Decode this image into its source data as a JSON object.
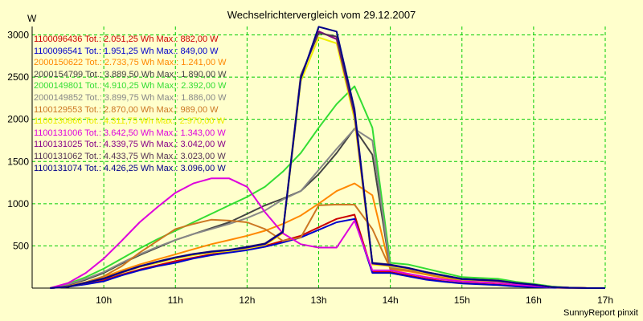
{
  "chart_data": {
    "type": "line",
    "title": "Wechselrichtervergleich vom 29.12.2007",
    "ylabel": "W",
    "footer": "SunnyReport pinxit",
    "xlim": [
      9.0,
      17.0
    ],
    "ylim": [
      0,
      3100
    ],
    "x_ticks": [
      10,
      11,
      12,
      13,
      14,
      15,
      16,
      17
    ],
    "x_tick_labels": [
      "10h",
      "11h",
      "12h",
      "13h",
      "14h",
      "15h",
      "16h",
      "17h"
    ],
    "y_ticks": [
      500,
      1000,
      1500,
      2000,
      2500,
      3000
    ],
    "y_tick_labels": [
      "500",
      "1000",
      "1500",
      "2000",
      "2500",
      "3000"
    ],
    "grid": true,
    "legend_position": "top-left",
    "series": [
      {
        "name": "1100096436 Tot.: 2.051,25 Wh Max.: 882,00 W",
        "color": "#cc0000",
        "x": [
          9.25,
          9.5,
          9.75,
          10,
          10.25,
          10.5,
          10.75,
          11,
          11.25,
          11.5,
          11.75,
          12,
          12.25,
          12.5,
          12.75,
          13,
          13.25,
          13.5,
          13.75,
          14,
          14.25,
          14.5,
          14.75,
          15,
          15.25,
          15.5,
          15.75,
          16,
          16.25,
          16.5,
          16.75,
          17
        ],
        "y": [
          0,
          20,
          50,
          100,
          160,
          220,
          270,
          320,
          360,
          400,
          430,
          460,
          500,
          560,
          620,
          720,
          820,
          870,
          190,
          190,
          150,
          110,
          80,
          60,
          50,
          40,
          25,
          15,
          5,
          3,
          0,
          0
        ]
      },
      {
        "name": "1100096541 Tot.: 1.951,25 Wh Max.: 849,00 W",
        "color": "#0000cc",
        "x": [
          9.25,
          9.5,
          9.75,
          10,
          10.25,
          10.5,
          10.75,
          11,
          11.25,
          11.5,
          11.75,
          12,
          12.25,
          12.5,
          12.75,
          13,
          13.25,
          13.5,
          13.75,
          14,
          14.25,
          14.5,
          14.75,
          15,
          15.25,
          15.5,
          15.75,
          16,
          16.25,
          16.5,
          16.75,
          17
        ],
        "y": [
          0,
          15,
          45,
          80,
          150,
          210,
          260,
          300,
          350,
          390,
          420,
          450,
          490,
          540,
          600,
          690,
          780,
          820,
          180,
          180,
          140,
          100,
          75,
          55,
          45,
          35,
          20,
          12,
          5,
          3,
          0,
          0
        ]
      },
      {
        "name": "2000150622 Tot.: 2.733,75 Wh Max.: 1.241,00 W",
        "color": "#ff8800",
        "x": [
          9.25,
          9.5,
          9.75,
          10,
          10.25,
          10.5,
          10.75,
          11,
          11.25,
          11.5,
          11.75,
          12,
          12.25,
          12.5,
          12.75,
          13,
          13.25,
          13.5,
          13.75,
          14,
          14.25,
          14.5,
          14.75,
          15,
          15.25,
          15.5,
          15.75,
          16,
          16.25,
          16.5,
          16.75,
          17
        ],
        "y": [
          0,
          25,
          70,
          130,
          210,
          280,
          340,
          400,
          460,
          520,
          570,
          620,
          680,
          760,
          860,
          1000,
          1150,
          1240,
          1100,
          220,
          200,
          160,
          120,
          90,
          80,
          70,
          50,
          30,
          10,
          5,
          0,
          0
        ]
      },
      {
        "name": "2000154799 Tot.: 3.889,50 Wh Max.: 1.890,00 W",
        "color": "#444444",
        "x": [
          9.25,
          9.5,
          9.75,
          10,
          10.25,
          10.5,
          10.75,
          11,
          11.25,
          11.5,
          11.75,
          12,
          12.25,
          12.5,
          12.75,
          13,
          13.25,
          13.5,
          13.75,
          14,
          14.25,
          14.5,
          14.75,
          15,
          15.25,
          15.5,
          15.75,
          16,
          16.25,
          16.5,
          16.75,
          17
        ],
        "y": [
          0,
          40,
          100,
          180,
          290,
          390,
          480,
          570,
          640,
          710,
          780,
          880,
          980,
          1060,
          1150,
          1350,
          1600,
          1890,
          1580,
          230,
          230,
          190,
          140,
          110,
          100,
          90,
          60,
          40,
          15,
          5,
          0,
          0
        ]
      },
      {
        "name": "2000149801 Tot.: 4.910,25 Wh Max.: 2.392,00 W",
        "color": "#33dd33",
        "x": [
          9.25,
          9.5,
          9.75,
          10,
          10.25,
          10.5,
          10.75,
          11,
          11.25,
          11.5,
          11.75,
          12,
          12.25,
          12.5,
          12.75,
          13,
          13.25,
          13.5,
          13.75,
          14,
          14.25,
          14.5,
          14.75,
          15,
          15.25,
          15.5,
          15.75,
          16,
          16.25,
          16.5,
          16.75,
          17
        ],
        "y": [
          0,
          50,
          130,
          230,
          350,
          470,
          580,
          680,
          780,
          880,
          980,
          1080,
          1200,
          1380,
          1600,
          1900,
          2180,
          2392,
          1900,
          300,
          280,
          230,
          180,
          130,
          120,
          110,
          75,
          50,
          20,
          5,
          0,
          0
        ]
      },
      {
        "name": "2000149852 Tot.: 3.899,75 Wh Max.: 1.886,00 W",
        "color": "#888888",
        "x": [
          9.25,
          9.5,
          9.75,
          10,
          10.25,
          10.5,
          10.75,
          11,
          11.25,
          11.5,
          11.75,
          12,
          12.25,
          12.5,
          12.75,
          13,
          13.25,
          13.5,
          13.75,
          14,
          14.25,
          14.5,
          14.75,
          15,
          15.25,
          15.5,
          15.75,
          16,
          16.25,
          16.5,
          16.75,
          17
        ],
        "y": [
          0,
          45,
          110,
          190,
          300,
          400,
          490,
          570,
          640,
          700,
          760,
          830,
          920,
          1050,
          1150,
          1400,
          1650,
          1886,
          1750,
          240,
          230,
          190,
          150,
          110,
          100,
          90,
          60,
          40,
          15,
          5,
          0,
          0
        ]
      },
      {
        "name": "1100129553 Tot.: 2.870,00 Wh Max.: 989,00 W",
        "color": "#cc7722",
        "x": [
          9.25,
          9.5,
          9.75,
          10,
          10.25,
          10.5,
          10.75,
          11,
          11.25,
          11.5,
          11.75,
          12,
          12.25,
          12.5,
          12.75,
          13,
          13.25,
          13.5,
          13.75,
          14,
          14.25,
          14.5,
          14.75,
          15,
          15.25,
          15.5,
          15.75,
          16,
          16.25,
          16.5,
          16.75,
          17
        ],
        "y": [
          0,
          20,
          70,
          140,
          260,
          420,
          560,
          700,
          760,
          810,
          800,
          780,
          700,
          560,
          600,
          980,
          990,
          989,
          700,
          230,
          210,
          170,
          130,
          100,
          90,
          80,
          55,
          35,
          10,
          5,
          0,
          0
        ]
      },
      {
        "name": "1100130866 Tot.: 4.311,75 Wh Max.: 2.970,00 W",
        "color": "#eeee00",
        "x": [
          9.25,
          9.5,
          9.75,
          10,
          10.25,
          10.5,
          10.75,
          11,
          11.25,
          11.5,
          11.75,
          12,
          12.25,
          12.5,
          12.75,
          13,
          13.25,
          13.5,
          13.75,
          14,
          14.25,
          14.5,
          14.75,
          15,
          15.25,
          15.5,
          15.75,
          16,
          16.25,
          16.5,
          16.75,
          17
        ],
        "y": [
          0,
          15,
          60,
          110,
          180,
          250,
          300,
          350,
          390,
          420,
          440,
          470,
          510,
          650,
          2450,
          2970,
          2900,
          2000,
          280,
          260,
          230,
          180,
          140,
          100,
          90,
          80,
          55,
          35,
          10,
          5,
          0,
          0
        ]
      },
      {
        "name": "1100131006 Tot.: 3.642,50 Wh Max.: 1.343,00 W",
        "color": "#dd00dd",
        "x": [
          9.25,
          9.5,
          9.75,
          10,
          10.25,
          10.5,
          10.75,
          11,
          11.25,
          11.5,
          11.75,
          12,
          12.25,
          12.5,
          12.75,
          13,
          13.25,
          13.5,
          13.75,
          14,
          14.25,
          14.5,
          14.75,
          15,
          15.25,
          15.5,
          15.75,
          16,
          16.25,
          16.5,
          16.75,
          17
        ],
        "y": [
          0,
          60,
          180,
          350,
          560,
          780,
          960,
          1130,
          1240,
          1300,
          1300,
          1200,
          900,
          650,
          520,
          480,
          480,
          800,
          210,
          210,
          170,
          130,
          100,
          80,
          70,
          60,
          40,
          25,
          10,
          5,
          0,
          0
        ]
      },
      {
        "name": "1100131025 Tot.: 4.339,75 Wh Max.: 3.042,00 W",
        "color": "#880088",
        "x": [
          9.25,
          9.5,
          9.75,
          10,
          10.25,
          10.5,
          10.75,
          11,
          11.25,
          11.5,
          11.75,
          12,
          12.25,
          12.5,
          12.75,
          13,
          13.25,
          13.5,
          13.75,
          14,
          14.25,
          14.5,
          14.75,
          15,
          15.25,
          15.5,
          15.75,
          16,
          16.25,
          16.5,
          16.75,
          17
        ],
        "y": [
          0,
          15,
          60,
          110,
          185,
          255,
          310,
          360,
          400,
          430,
          450,
          480,
          520,
          660,
          2500,
          3042,
          2950,
          2050,
          290,
          270,
          235,
          185,
          145,
          105,
          95,
          85,
          60,
          40,
          12,
          5,
          0,
          0
        ]
      },
      {
        "name": "1100131062 Tot.: 4.433,75 Wh Max.: 3.023,00 W",
        "color": "#553355",
        "x": [
          9.25,
          9.5,
          9.75,
          10,
          10.25,
          10.5,
          10.75,
          11,
          11.25,
          11.5,
          11.75,
          12,
          12.25,
          12.5,
          12.75,
          13,
          13.25,
          13.5,
          13.75,
          14,
          14.25,
          14.5,
          14.75,
          15,
          15.25,
          15.5,
          15.75,
          16,
          16.25,
          16.5,
          16.75,
          17
        ],
        "y": [
          0,
          15,
          65,
          115,
          190,
          260,
          315,
          365,
          405,
          435,
          455,
          490,
          530,
          670,
          2520,
          3023,
          2980,
          2080,
          300,
          280,
          240,
          190,
          150,
          110,
          100,
          90,
          62,
          42,
          12,
          5,
          0,
          0
        ]
      },
      {
        "name": "1100131074 Tot.: 4.426,25 Wh Max.: 3.096,00 W",
        "color": "#000088",
        "x": [
          9.25,
          9.5,
          9.75,
          10,
          10.25,
          10.5,
          10.75,
          11,
          11.25,
          11.5,
          11.75,
          12,
          12.25,
          12.5,
          12.75,
          13,
          13.25,
          13.5,
          13.75,
          14,
          14.25,
          14.5,
          14.75,
          15,
          15.25,
          15.5,
          15.75,
          16,
          16.25,
          16.5,
          16.75,
          17
        ],
        "y": [
          0,
          15,
          62,
          112,
          188,
          258,
          312,
          362,
          402,
          432,
          452,
          485,
          525,
          665,
          2480,
          3096,
          3040,
          2120,
          295,
          275,
          238,
          188,
          148,
          108,
          98,
          88,
          60,
          40,
          12,
          5,
          0,
          0
        ]
      }
    ]
  }
}
